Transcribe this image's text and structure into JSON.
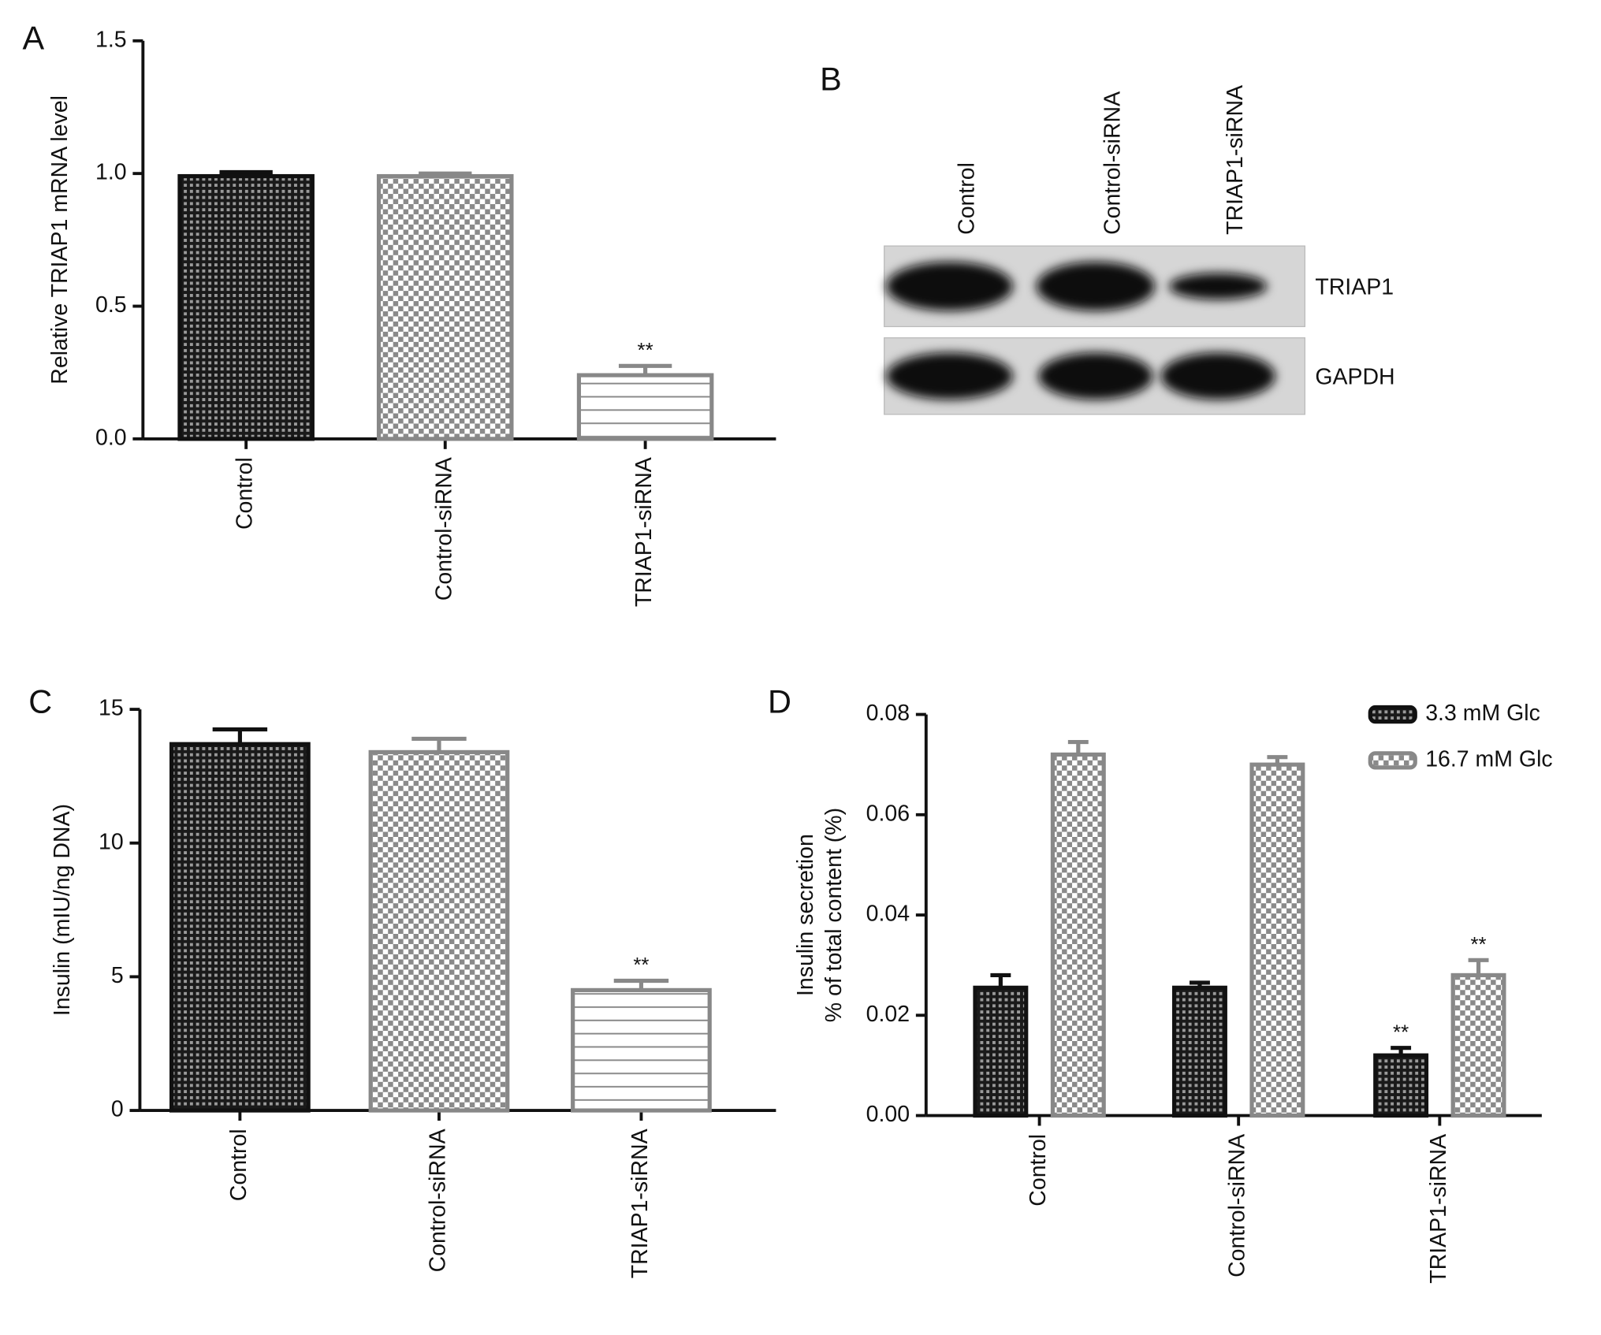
{
  "chart_data": [
    {
      "type": "bar",
      "panel": "A",
      "y_label": [
        "Relative TRIAP1 mRNA level"
      ],
      "categories": [
        "Control",
        "Control-siRNA",
        "TRIAP1-siRNA"
      ],
      "values": [
        0.99,
        0.99,
        0.24
      ],
      "errors": [
        0.015,
        0.01,
        0.035
      ],
      "significance": [
        null,
        null,
        "**"
      ],
      "colors": [
        "#111111",
        "#888888",
        "#888888"
      ],
      "ylim": [
        0,
        1.5
      ],
      "yticks": [
        {
          "value": 0,
          "label": "0.0"
        },
        {
          "value": 0.5,
          "label": "0.5"
        },
        {
          "value": 1,
          "label": "1.0"
        },
        1.5
      ]
    },
    {
      "type": "blot",
      "panel": "B",
      "lanes": [
        "Control",
        "Control-siRNA",
        "TRIAP1-siRNA"
      ],
      "bands": [
        "TRIAP1",
        "GAPDH"
      ]
    },
    {
      "type": "bar",
      "panel": "C",
      "y_label": [
        "Insulin (mIU/ng DNA)"
      ],
      "categories": [
        "Control",
        "Control-siRNA",
        "TRIAP1-siRNA"
      ],
      "values": [
        13.7,
        13.4,
        4.5
      ],
      "errors": [
        0.55,
        0.5,
        0.35
      ],
      "significance": [
        null,
        null,
        "**"
      ],
      "colors": [
        "#111111",
        "#888888",
        "#888888"
      ],
      "ylim": [
        0,
        15
      ],
      "yticks": [
        0,
        5,
        10,
        15
      ]
    },
    {
      "type": "bar",
      "panel": "D",
      "y_label": [
        "Insulin secretion",
        "% of total content (%)"
      ],
      "categories": [
        "Control",
        "Control-siRNA",
        "TRIAP1-siRNA"
      ],
      "series": [
        {
          "name": "3.3 mM Glc",
          "color": "#111111",
          "values": [
            0.0255,
            0.0255,
            0.012
          ],
          "errors": [
            0.0025,
            0.001,
            0.0015
          ],
          "significance": [
            null,
            null,
            "**"
          ]
        },
        {
          "name": "16.7 mM Glc",
          "color": "#888888",
          "values": [
            0.072,
            0.07,
            0.028
          ],
          "errors": [
            0.0025,
            0.0015,
            0.003
          ],
          "significance": [
            null,
            null,
            "**"
          ]
        }
      ],
      "legend": "top-right",
      "ylim": [
        0,
        0.08
      ],
      "yticks": [
        {
          "value": 0,
          "label": "0.00"
        },
        {
          "value": 0.02,
          "label": "0.02"
        },
        {
          "value": 0.04,
          "label": "0.04"
        },
        {
          "value": 0.06,
          "label": "0.06"
        },
        {
          "value": 0.08,
          "label": "0.08"
        }
      ]
    }
  ]
}
